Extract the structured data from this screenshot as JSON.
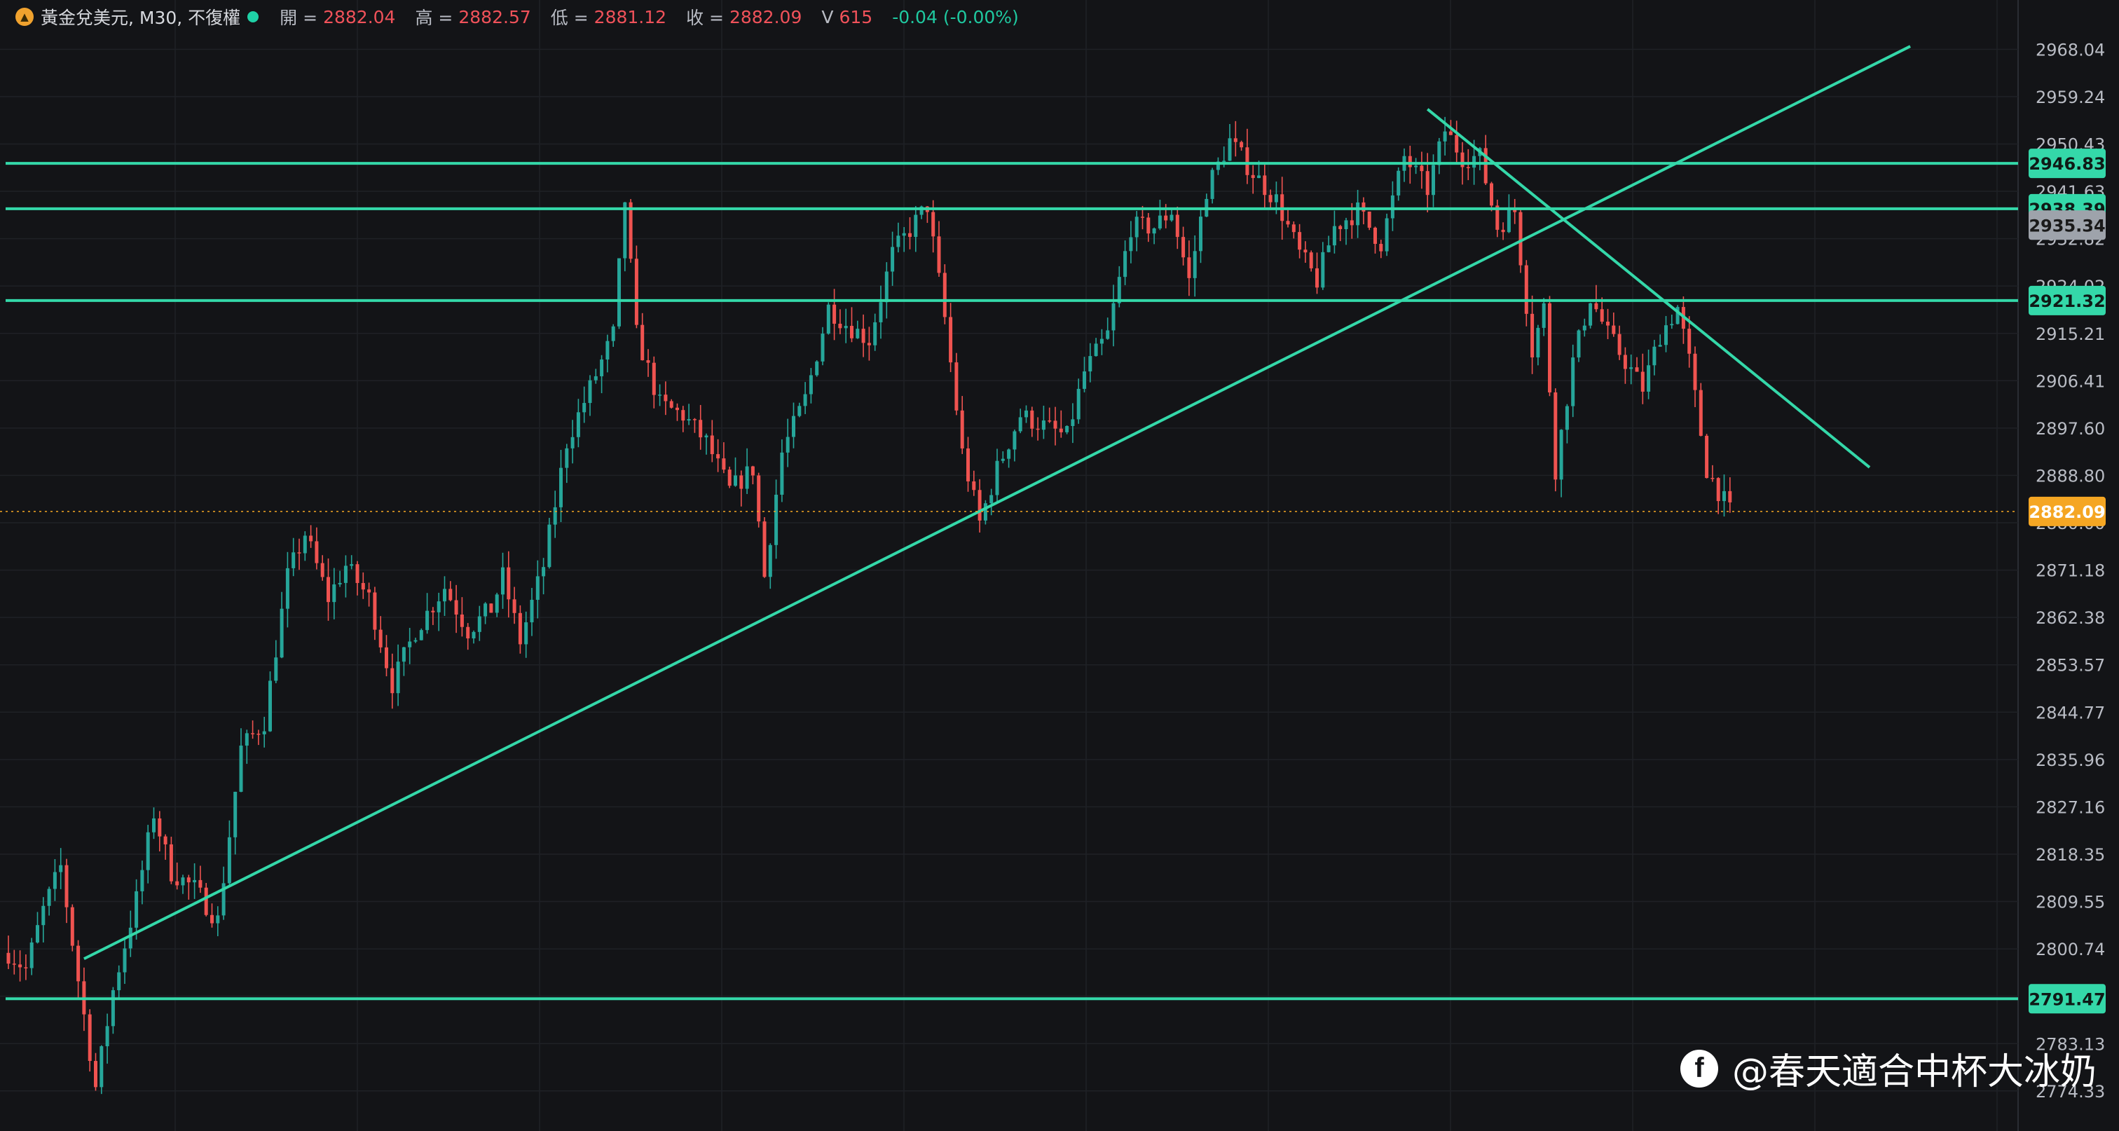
{
  "header": {
    "logo_icon": "gold-coin-icon",
    "symbol": "黃金兌美元, M30, 不復權",
    "open_label": "開 =",
    "open": "2882.04",
    "high_label": "高 =",
    "high": "2882.57",
    "low_label": "低 =",
    "low": "2881.12",
    "close_label": "收 =",
    "close": "2882.09",
    "vol_label": "V",
    "vol": "615",
    "change": "-0.04 (-0.00%)"
  },
  "watermark": {
    "icon": "facebook-icon",
    "text": "@春天適合中杯大冰奶"
  },
  "colors": {
    "background": "#131417",
    "grid": "#1f2126",
    "up": "#26a69a",
    "down": "#ef5350",
    "drawing": "#34d8a9",
    "axis_text": "#b9bcc4",
    "last_price": "#f5a623",
    "crosshair_tag": "#9ea3ab"
  },
  "chart_data": {
    "type": "candlestick",
    "ylim": [
      2770.0,
      2972.0
    ],
    "y_ticks": [
      "2968.04",
      "2959.24",
      "2950.43",
      "2941.63",
      "2932.82",
      "2924.02",
      "2915.21",
      "2906.41",
      "2897.60",
      "2888.80",
      "2880.00",
      "2871.18",
      "2862.38",
      "2853.57",
      "2844.77",
      "2835.96",
      "2827.16",
      "2818.35",
      "2809.55",
      "2800.74",
      "2791.94",
      "2783.13",
      "2774.33"
    ],
    "horizontal_lines": [
      {
        "price": 2946.83,
        "label": "2946.83"
      },
      {
        "price": 2938.39,
        "label": "2938.39"
      },
      {
        "price": 2921.32,
        "label": "2921.32"
      },
      {
        "price": 2791.47,
        "label": "2791.47"
      }
    ],
    "price_tags": [
      {
        "price": 2935.34,
        "label": "2935.34",
        "kind": "crosshair"
      },
      {
        "price": 2882.09,
        "label": "2882.09",
        "kind": "last"
      }
    ],
    "last_price": 2882.09,
    "trend_lines": [
      {
        "name": "ascending-support",
        "bar_from": 13,
        "price_from": 2798.9,
        "bar_to": 327,
        "price_to": 2968.6
      },
      {
        "name": "descending-resistance",
        "bar_from": 244,
        "price_from": 2956.9,
        "bar_to": 320,
        "price_to": 2890.3
      }
    ],
    "anchors": [
      [
        0,
        2800
      ],
      [
        3,
        2797
      ],
      [
        6,
        2808
      ],
      [
        9,
        2816
      ],
      [
        12,
        2795
      ],
      [
        15,
        2775
      ],
      [
        18,
        2793
      ],
      [
        22,
        2810
      ],
      [
        25,
        2826
      ],
      [
        28,
        2815
      ],
      [
        32,
        2812
      ],
      [
        36,
        2806
      ],
      [
        40,
        2838
      ],
      [
        44,
        2843
      ],
      [
        48,
        2870
      ],
      [
        51,
        2878
      ],
      [
        55,
        2866
      ],
      [
        58,
        2872
      ],
      [
        62,
        2866
      ],
      [
        66,
        2850
      ],
      [
        70,
        2860
      ],
      [
        75,
        2868
      ],
      [
        79,
        2860
      ],
      [
        83,
        2864
      ],
      [
        85,
        2870
      ],
      [
        88,
        2858
      ],
      [
        92,
        2872
      ],
      [
        96,
        2895
      ],
      [
        100,
        2905
      ],
      [
        104,
        2915
      ],
      [
        106,
        2940
      ],
      [
        108,
        2915
      ],
      [
        112,
        2902
      ],
      [
        116,
        2900
      ],
      [
        120,
        2895
      ],
      [
        124,
        2886
      ],
      [
        128,
        2890
      ],
      [
        130,
        2870
      ],
      [
        133,
        2893
      ],
      [
        137,
        2903
      ],
      [
        141,
        2920
      ],
      [
        144,
        2917
      ],
      [
        148,
        2914
      ],
      [
        152,
        2930
      ],
      [
        156,
        2936
      ],
      [
        158,
        2939
      ],
      [
        161,
        2918
      ],
      [
        164,
        2893
      ],
      [
        167,
        2880
      ],
      [
        170,
        2890
      ],
      [
        174,
        2900
      ],
      [
        178,
        2898
      ],
      [
        182,
        2896
      ],
      [
        185,
        2908
      ],
      [
        189,
        2915
      ],
      [
        193,
        2935
      ],
      [
        197,
        2935
      ],
      [
        200,
        2938
      ],
      [
        203,
        2925
      ],
      [
        206,
        2942
      ],
      [
        210,
        2951
      ],
      [
        214,
        2945
      ],
      [
        218,
        2940
      ],
      [
        222,
        2930
      ],
      [
        225,
        2925
      ],
      [
        228,
        2935
      ],
      [
        232,
        2938
      ],
      [
        236,
        2932
      ],
      [
        240,
        2948
      ],
      [
        244,
        2942
      ],
      [
        247,
        2953
      ],
      [
        250,
        2948
      ],
      [
        253,
        2948
      ],
      [
        256,
        2935
      ],
      [
        259,
        2938
      ],
      [
        262,
        2912
      ],
      [
        264,
        2920
      ],
      [
        266,
        2890
      ],
      [
        269,
        2910
      ],
      [
        272,
        2922
      ],
      [
        275,
        2915
      ],
      [
        278,
        2910
      ],
      [
        281,
        2905
      ],
      [
        284,
        2915
      ],
      [
        287,
        2920
      ],
      [
        289,
        2910
      ],
      [
        292,
        2890
      ],
      [
        294,
        2886
      ],
      [
        296,
        2882
      ]
    ],
    "seed": 7
  }
}
